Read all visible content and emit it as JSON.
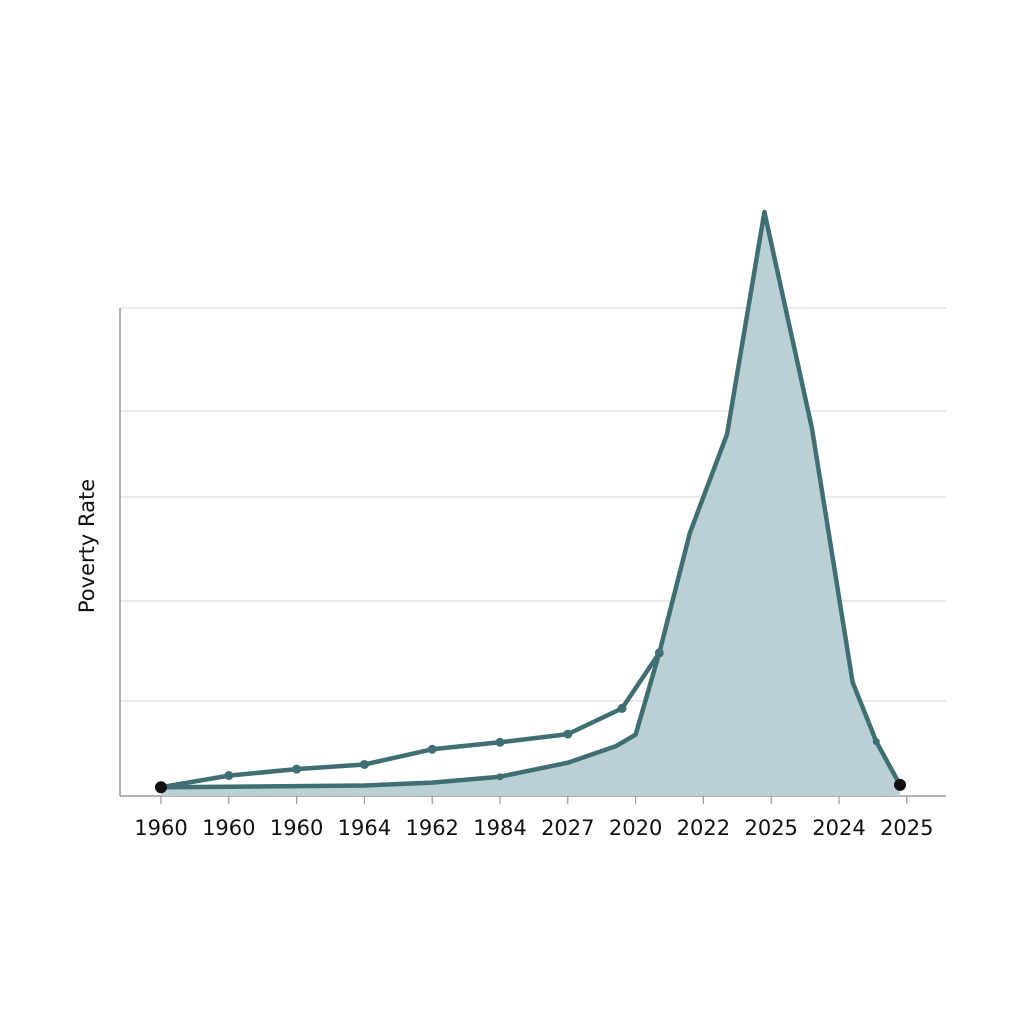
{
  "chart_data": {
    "type": "area",
    "title": "",
    "xlabel": "",
    "ylabel": "Poverty Rate",
    "x_tick_labels": [
      "1960",
      "1960",
      "1960",
      "1964",
      "1962",
      "1984",
      "2027",
      "2020",
      "2022",
      "2025",
      "2024",
      "2025"
    ],
    "ylim": [
      0,
      100
    ],
    "grid": true,
    "legend": "none",
    "series": [
      {
        "style": "line-with-markers",
        "points": [
          [
            0,
            1.5
          ],
          [
            1,
            3.5
          ],
          [
            2,
            4.6
          ],
          [
            3,
            5.4
          ],
          [
            4,
            8
          ],
          [
            5,
            9.2
          ],
          [
            6,
            10.6
          ],
          [
            6.8,
            15
          ],
          [
            7.35,
            24.5
          ]
        ]
      },
      {
        "style": "filled-area",
        "points": [
          [
            0,
            1.5
          ],
          [
            1,
            1.6
          ],
          [
            2,
            1.7
          ],
          [
            3,
            1.8
          ],
          [
            4,
            2.3
          ],
          [
            5,
            3.3
          ],
          [
            6,
            5.7
          ],
          [
            6.7,
            8.5
          ],
          [
            7,
            10.5
          ],
          [
            7.35,
            24.5
          ],
          [
            7.8,
            45
          ],
          [
            8.35,
            62
          ],
          [
            8.9,
            100
          ],
          [
            9.6,
            63
          ],
          [
            10.2,
            19.5
          ],
          [
            10.55,
            9.3
          ],
          [
            10.9,
            1.9
          ]
        ]
      }
    ],
    "colors": {
      "line": "#3f6f72",
      "fill": "#b7cdd3",
      "endpoint": "#111111",
      "grid": "#dedede",
      "axis": "#9a9a9a"
    }
  }
}
